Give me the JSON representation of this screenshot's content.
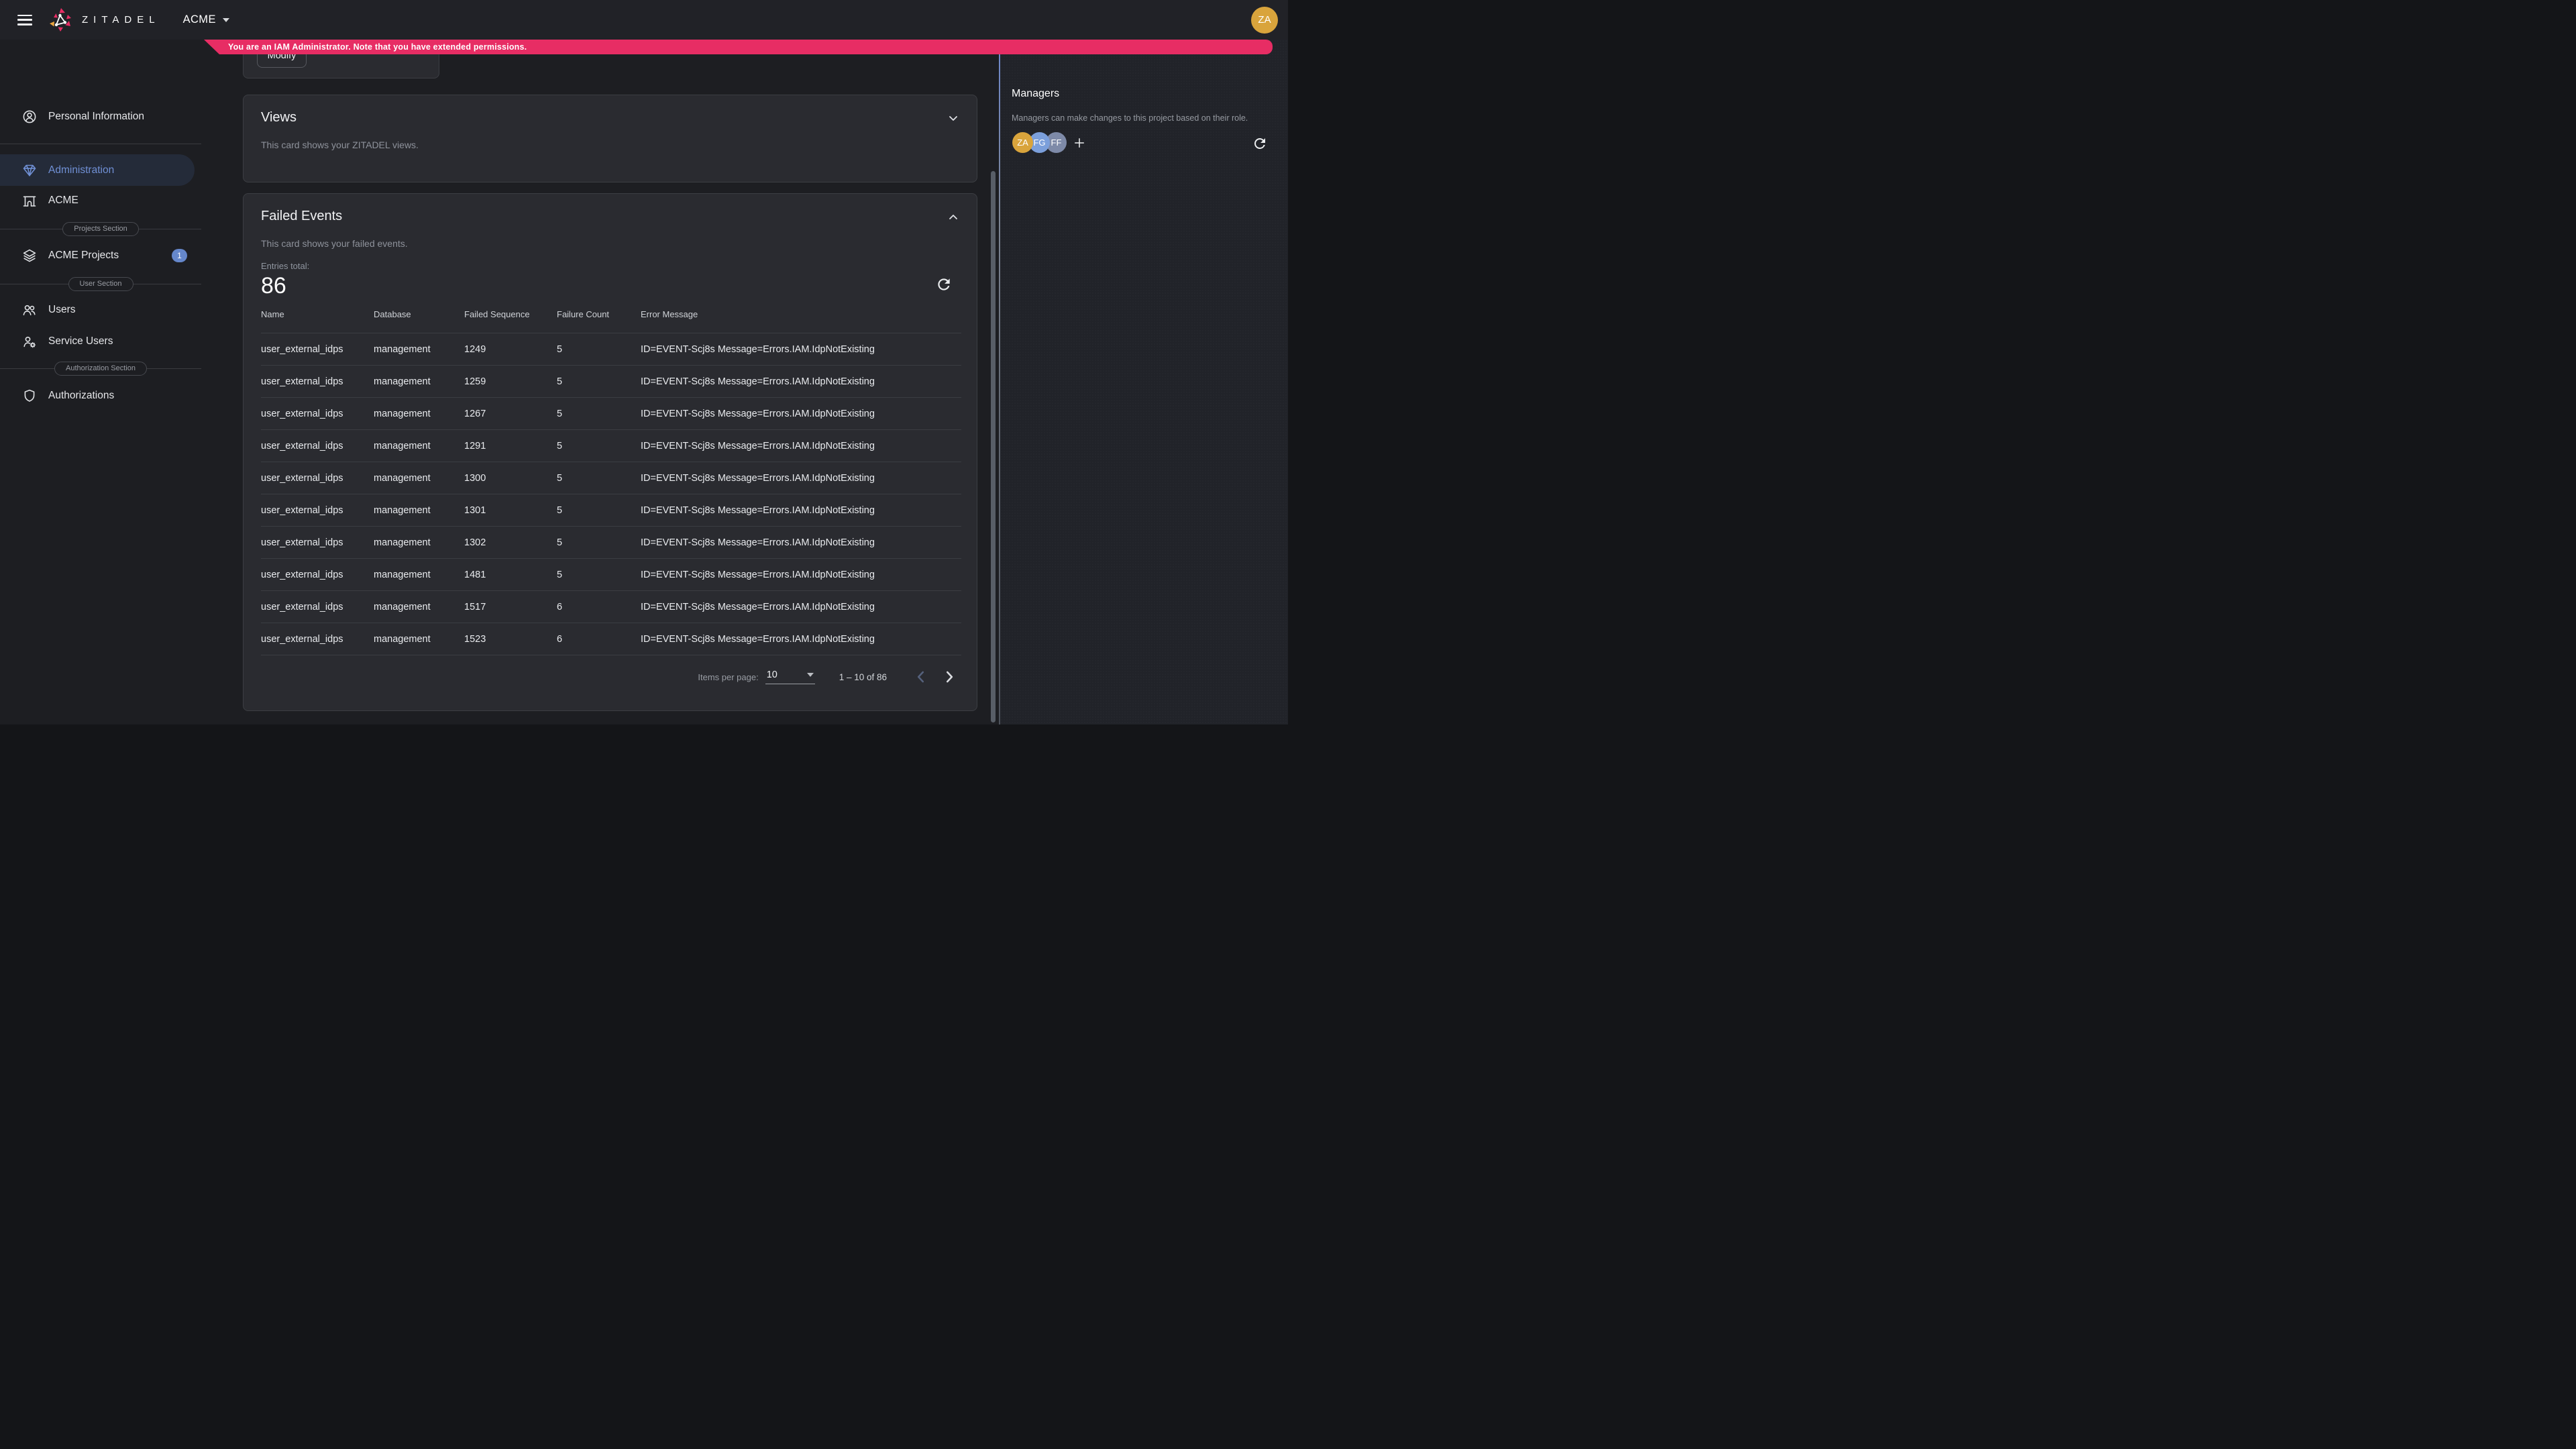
{
  "topbar": {
    "brand": "ZITADEL",
    "org": "ACME",
    "avatar": {
      "initials": "ZA",
      "color": "#d9a43c"
    }
  },
  "banner": {
    "message": "You are an IAM Administrator. Note that you have extended permissions.",
    "color": "#e72d64"
  },
  "sidebar": {
    "items": [
      {
        "label": "Personal Information",
        "icon": "person-circle-icon",
        "active": false
      },
      {
        "label": "Administration",
        "icon": "gem-icon",
        "active": true
      },
      {
        "label": "ACME",
        "icon": "organization-icon",
        "active": false
      },
      {
        "label": "ACME Projects",
        "icon": "layers-icon",
        "badge": "1",
        "active": false
      },
      {
        "label": "Users",
        "icon": "users-icon",
        "active": false
      },
      {
        "label": "Service Users",
        "icon": "service-users-icon",
        "active": false
      },
      {
        "label": "Authorizations",
        "icon": "shield-icon",
        "active": false
      }
    ],
    "sections": [
      {
        "label": "Projects Section"
      },
      {
        "label": "User Section"
      },
      {
        "label": "Authorization Section"
      }
    ],
    "badge_color": "#6587cb",
    "active_color": "#7090d5"
  },
  "modify_card": {
    "button_label": "Modify"
  },
  "views_card": {
    "title": "Views",
    "description": "This card shows your ZITADEL views."
  },
  "failed_events": {
    "title": "Failed Events",
    "description": "This card shows your failed events.",
    "entries_total_label": "Entries total:",
    "entries_total": "86",
    "columns": [
      "Name",
      "Database",
      "Failed Sequence",
      "Failure Count",
      "Error Message"
    ],
    "rows": [
      [
        "user_external_idps",
        "management",
        "1249",
        "5",
        "ID=EVENT-Scj8s Message=Errors.IAM.IdpNotExisting"
      ],
      [
        "user_external_idps",
        "management",
        "1259",
        "5",
        "ID=EVENT-Scj8s Message=Errors.IAM.IdpNotExisting"
      ],
      [
        "user_external_idps",
        "management",
        "1267",
        "5",
        "ID=EVENT-Scj8s Message=Errors.IAM.IdpNotExisting"
      ],
      [
        "user_external_idps",
        "management",
        "1291",
        "5",
        "ID=EVENT-Scj8s Message=Errors.IAM.IdpNotExisting"
      ],
      [
        "user_external_idps",
        "management",
        "1300",
        "5",
        "ID=EVENT-Scj8s Message=Errors.IAM.IdpNotExisting"
      ],
      [
        "user_external_idps",
        "management",
        "1301",
        "5",
        "ID=EVENT-Scj8s Message=Errors.IAM.IdpNotExisting"
      ],
      [
        "user_external_idps",
        "management",
        "1302",
        "5",
        "ID=EVENT-Scj8s Message=Errors.IAM.IdpNotExisting"
      ],
      [
        "user_external_idps",
        "management",
        "1481",
        "5",
        "ID=EVENT-Scj8s Message=Errors.IAM.IdpNotExisting"
      ],
      [
        "user_external_idps",
        "management",
        "1517",
        "6",
        "ID=EVENT-Scj8s Message=Errors.IAM.IdpNotExisting"
      ],
      [
        "user_external_idps",
        "management",
        "1523",
        "6",
        "ID=EVENT-Scj8s Message=Errors.IAM.IdpNotExisting"
      ]
    ],
    "pagination": {
      "items_per_page_label": "Items per page:",
      "items_per_page": "10",
      "range": "1 – 10 of 86"
    }
  },
  "managers": {
    "title": "Managers",
    "description": "Managers can make changes to this project based on their role.",
    "avatars": [
      {
        "initials": "ZA",
        "color": "#d9a43c"
      },
      {
        "initials": "FG",
        "color": "#7b9fdb"
      },
      {
        "initials": "FF",
        "color": "#7e8aa8"
      }
    ]
  }
}
